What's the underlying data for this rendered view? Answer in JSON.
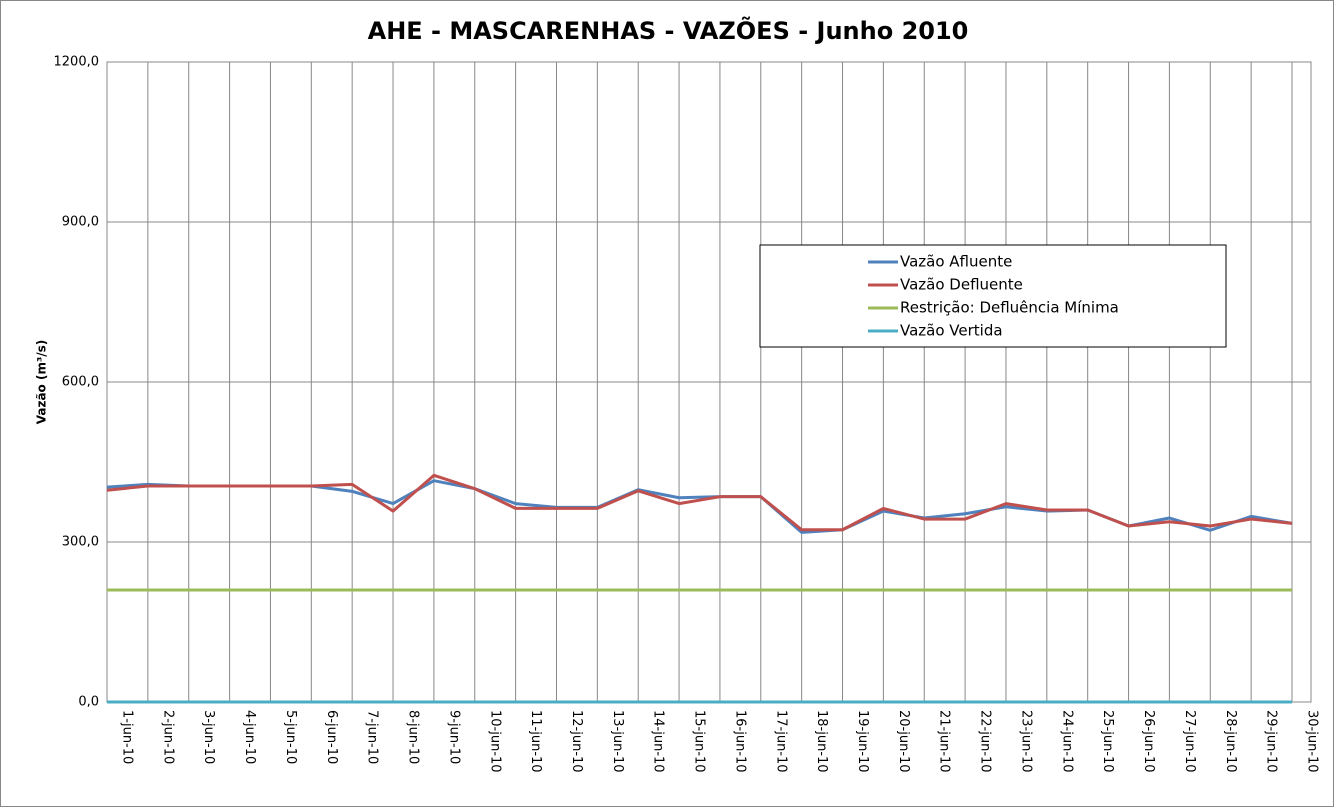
{
  "chart_data": {
    "type": "line",
    "title": "AHE - MASCARENHAS - VAZÕES -  Junho 2010",
    "y_label": "Vazão (m³/s)",
    "categories": [
      "1-jun-10",
      "2-jun-10",
      "3-jun-10",
      "4-jun-10",
      "5-jun-10",
      "6-jun-10",
      "7-jun-10",
      "8-jun-10",
      "9-jun-10",
      "10-jun-10",
      "11-jun-10",
      "12-jun-10",
      "13-jun-10",
      "14-jun-10",
      "15-jun-10",
      "16-jun-10",
      "17-jun-10",
      "18-jun-10",
      "19-jun-10",
      "20-jun-10",
      "21-jun-10",
      "22-jun-10",
      "23-jun-10",
      "24-jun-10",
      "25-jun-10",
      "26-jun-10",
      "27-jun-10",
      "28-jun-10",
      "29-jun-10",
      "30-jun-10"
    ],
    "series": [
      {
        "name": "Vazão Afluente",
        "color": "#4f81bd",
        "values": [
          403,
          408,
          405,
          405,
          405,
          405,
          395,
          372,
          415,
          400,
          372,
          365,
          365,
          398,
          383,
          385,
          385,
          318,
          323,
          358,
          345,
          353,
          366,
          358,
          360,
          330,
          345,
          322,
          348,
          335
        ]
      },
      {
        "name": "Vazão Defluente",
        "color": "#c0504d",
        "values": [
          397,
          405,
          405,
          405,
          405,
          405,
          408,
          358,
          425,
          400,
          363,
          363,
          363,
          396,
          372,
          385,
          385,
          323,
          323,
          363,
          343,
          343,
          372,
          360,
          360,
          330,
          338,
          330,
          343,
          335
        ]
      },
      {
        "name": "Restrição: Defluência Mínima",
        "color": "#9bbb59",
        "values": [
          210,
          210,
          210,
          210,
          210,
          210,
          210,
          210,
          210,
          210,
          210,
          210,
          210,
          210,
          210,
          210,
          210,
          210,
          210,
          210,
          210,
          210,
          210,
          210,
          210,
          210,
          210,
          210,
          210,
          210
        ]
      },
      {
        "name": "Vazão Vertida",
        "color": "#4bacc6",
        "values": [
          0,
          0,
          0,
          0,
          0,
          0,
          0,
          0,
          0,
          0,
          0,
          0,
          0,
          0,
          0,
          0,
          0,
          0,
          0,
          0,
          0,
          0,
          0,
          0,
          0,
          0,
          0,
          0,
          0,
          0
        ]
      }
    ],
    "ylim": [
      0,
      1200
    ],
    "yticks": [
      {
        "value": 0,
        "label": "0,0"
      },
      {
        "value": 300,
        "label": "300,0"
      },
      {
        "value": 600,
        "label": "600,0"
      },
      {
        "value": 900,
        "label": "900,0"
      },
      {
        "value": 1200,
        "label": "1200,0"
      }
    ],
    "grid": true,
    "legend": "upper right"
  }
}
